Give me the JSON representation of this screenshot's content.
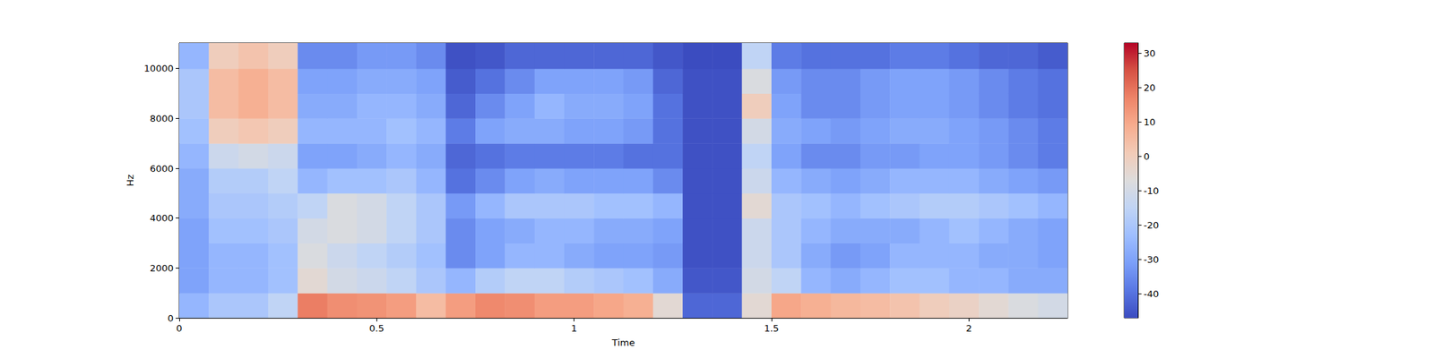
{
  "chart_data": {
    "type": "heatmap",
    "x_label": "Time",
    "y_label": "Hz",
    "xlim": [
      0,
      2.25
    ],
    "xticks": [
      0,
      0.5,
      1,
      1.5,
      2
    ],
    "ylim": [
      0,
      11025
    ],
    "yticks": [
      0,
      2000,
      4000,
      6000,
      8000,
      10000
    ],
    "grid": false,
    "x_bins": [
      0,
      0.075,
      0.15,
      0.225,
      0.3,
      0.375,
      0.45,
      0.525,
      0.6,
      0.675,
      0.75,
      0.825,
      0.9,
      0.975,
      1.05,
      1.125,
      1.2,
      1.275,
      1.35,
      1.425,
      1.5,
      1.575,
      1.65,
      1.725,
      1.8,
      1.875,
      1.95,
      2.025,
      2.1,
      2.175,
      2.25
    ],
    "y_bins": [
      0,
      1000,
      2000,
      3000,
      4000,
      5000,
      6000,
      7000,
      8000,
      9000,
      10000,
      11025
    ],
    "values": [
      [
        -25,
        -20,
        -20,
        -15,
        18,
        15,
        14,
        12,
        5,
        12,
        16,
        15,
        12,
        12,
        10,
        8,
        -5,
        -42,
        -42,
        -5,
        10,
        8,
        6,
        5,
        3,
        0,
        -2,
        -5,
        -8,
        -10
      ],
      [
        -30,
        -25,
        -25,
        -22,
        -5,
        -10,
        -12,
        -15,
        -20,
        -25,
        -18,
        -15,
        -15,
        -18,
        -20,
        -22,
        -28,
        -45,
        -45,
        -10,
        -15,
        -25,
        -28,
        -25,
        -22,
        -22,
        -25,
        -25,
        -28,
        -28
      ],
      [
        -30,
        -25,
        -25,
        -22,
        -8,
        -12,
        -15,
        -18,
        -22,
        -35,
        -30,
        -25,
        -25,
        -28,
        -30,
        -30,
        -32,
        -46,
        -46,
        -12,
        -20,
        -28,
        -32,
        -30,
        -25,
        -25,
        -25,
        -28,
        -28,
        -30
      ],
      [
        -30,
        -22,
        -22,
        -20,
        -10,
        -8,
        -10,
        -15,
        -20,
        -35,
        -30,
        -28,
        -25,
        -25,
        -28,
        -28,
        -30,
        -46,
        -46,
        -12,
        -20,
        -25,
        -28,
        -28,
        -28,
        -25,
        -22,
        -25,
        -28,
        -30
      ],
      [
        -28,
        -20,
        -20,
        -18,
        -15,
        -8,
        -10,
        -15,
        -20,
        -32,
        -25,
        -20,
        -20,
        -20,
        -22,
        -22,
        -25,
        -46,
        -46,
        -5,
        -20,
        -22,
        -25,
        -22,
        -20,
        -18,
        -18,
        -20,
        -22,
        -25
      ],
      [
        -28,
        -18,
        -18,
        -15,
        -25,
        -22,
        -22,
        -20,
        -25,
        -40,
        -35,
        -30,
        -28,
        -30,
        -30,
        -30,
        -35,
        -46,
        -46,
        -12,
        -25,
        -28,
        -30,
        -28,
        -25,
        -25,
        -25,
        -28,
        -30,
        -32
      ],
      [
        -25,
        -12,
        -10,
        -12,
        -30,
        -30,
        -28,
        -25,
        -28,
        -42,
        -40,
        -38,
        -38,
        -38,
        -38,
        -40,
        -40,
        -46,
        -46,
        -15,
        -30,
        -35,
        -35,
        -32,
        -32,
        -30,
        -30,
        -32,
        -35,
        -38
      ],
      [
        -22,
        0,
        2,
        0,
        -25,
        -25,
        -25,
        -22,
        -25,
        -38,
        -30,
        -28,
        -28,
        -30,
        -30,
        -32,
        -40,
        -46,
        -46,
        -10,
        -28,
        -30,
        -32,
        -30,
        -28,
        -28,
        -30,
        -32,
        -35,
        -38
      ],
      [
        -20,
        5,
        8,
        5,
        -28,
        -28,
        -25,
        -25,
        -28,
        -42,
        -35,
        -30,
        -25,
        -28,
        -28,
        -30,
        -40,
        -46,
        -46,
        0,
        -30,
        -35,
        -35,
        -32,
        -30,
        -30,
        -32,
        -35,
        -38,
        -40
      ],
      [
        -20,
        5,
        8,
        5,
        -30,
        -30,
        -28,
        -28,
        -30,
        -44,
        -40,
        -35,
        -30,
        -30,
        -30,
        -32,
        -42,
        -46,
        -46,
        -8,
        -32,
        -35,
        -35,
        -32,
        -30,
        -30,
        -32,
        -35,
        -38,
        -40
      ],
      [
        -25,
        0,
        3,
        0,
        -35,
        -35,
        -32,
        -32,
        -35,
        -46,
        -45,
        -42,
        -42,
        -42,
        -42,
        -42,
        -45,
        -47,
        -47,
        -15,
        -38,
        -40,
        -40,
        -40,
        -38,
        -38,
        -40,
        -42,
        -42,
        -44
      ]
    ],
    "colorbar": {
      "range": [
        -47,
        33
      ],
      "ticks": [
        -40,
        -30,
        -20,
        -10,
        0,
        10,
        20,
        30
      ]
    }
  }
}
